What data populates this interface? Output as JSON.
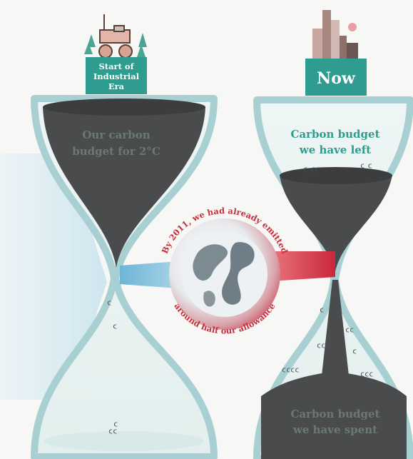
{
  "left_sign": {
    "line1": "Start of",
    "line2": "Industrial",
    "line3": "Era"
  },
  "right_sign": {
    "label": "Now"
  },
  "left_label": {
    "line1": "Our carbon",
    "line2": "budget for 2°C"
  },
  "right_top_label": {
    "line1": "Carbon budget",
    "line2": "we have left"
  },
  "right_bottom_label": {
    "line1": "Carbon budget",
    "line2": "we have spent"
  },
  "globe_text": {
    "top": "By 2011, we had already emitted",
    "bottom": "around half our allowance"
  },
  "icons": [
    "factory-icon",
    "tree-icon",
    "steam-engine-icon",
    "city-skyline-icon",
    "globe-icon",
    "carbon-molecule-icon"
  ],
  "colors": {
    "teal": "#2e9c8f",
    "glass": "#a8d0d3",
    "carbon": "#4a4b4d",
    "red": "#d4323f",
    "blue": "#8fc4dc"
  }
}
